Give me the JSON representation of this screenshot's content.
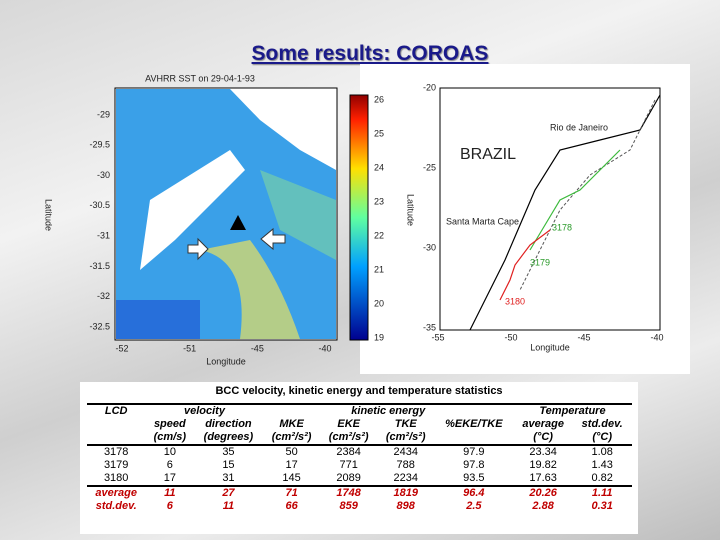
{
  "title": "Some results: COROAS",
  "left_map": {
    "title": "AVHRR SST on 29-04-1-93",
    "ylabel": "Latitude",
    "xlabel": "Longitude",
    "yticks": [
      "-29",
      "-29.5",
      "-30",
      "-30.5",
      "-31",
      "-31.5",
      "-32",
      "-32.5"
    ],
    "xticks": [
      "-52",
      "-51",
      "-45",
      "-40"
    ],
    "colorbar_ticks": [
      "26",
      "25",
      "24",
      "23",
      "22",
      "21",
      "20",
      "19"
    ]
  },
  "right_map": {
    "ylabel": "Latitude",
    "xlabel": "Longitude",
    "yticks": [
      "-20",
      "-25",
      "-30",
      "-35"
    ],
    "xticks": [
      "-55",
      "-50",
      "-45",
      "-40"
    ],
    "labels": {
      "country": "BRAZIL",
      "city": "Rio de Janeiro",
      "cape": "Santa Marta Cape",
      "d1": "3178",
      "d2": "3179",
      "d3": "3180"
    }
  },
  "table": {
    "caption": "BCC velocity, kinetic energy and temperature statistics",
    "groups": {
      "lcd": "LCD",
      "velocity": "velocity",
      "energy": "kinetic energy",
      "temperature": "Temperature"
    },
    "columns": [
      "speed",
      "direction",
      "MKE",
      "EKE",
      "TKE",
      "%EKE/TKE",
      "average",
      "std.dev."
    ],
    "units": [
      "(cm/s)",
      "(degrees)",
      "(cm²/s²)",
      "(cm²/s²)",
      "(cm²/s²)",
      "",
      "(°C)",
      "(°C)"
    ],
    "rows": [
      [
        "3178",
        "10",
        "35",
        "50",
        "2384",
        "2434",
        "97.9",
        "23.34",
        "1.08"
      ],
      [
        "3179",
        "6",
        "15",
        "17",
        "771",
        "788",
        "97.8",
        "19.82",
        "1.43"
      ],
      [
        "3180",
        "17",
        "31",
        "145",
        "2089",
        "2234",
        "93.5",
        "17.63",
        "0.82"
      ],
      [
        "average",
        "11",
        "27",
        "71",
        "1748",
        "1819",
        "96.4",
        "20.26",
        "1.11"
      ],
      [
        "std.dev.",
        "6",
        "11",
        "66",
        "859",
        "898",
        "2.5",
        "2.88",
        "0.31"
      ]
    ]
  }
}
